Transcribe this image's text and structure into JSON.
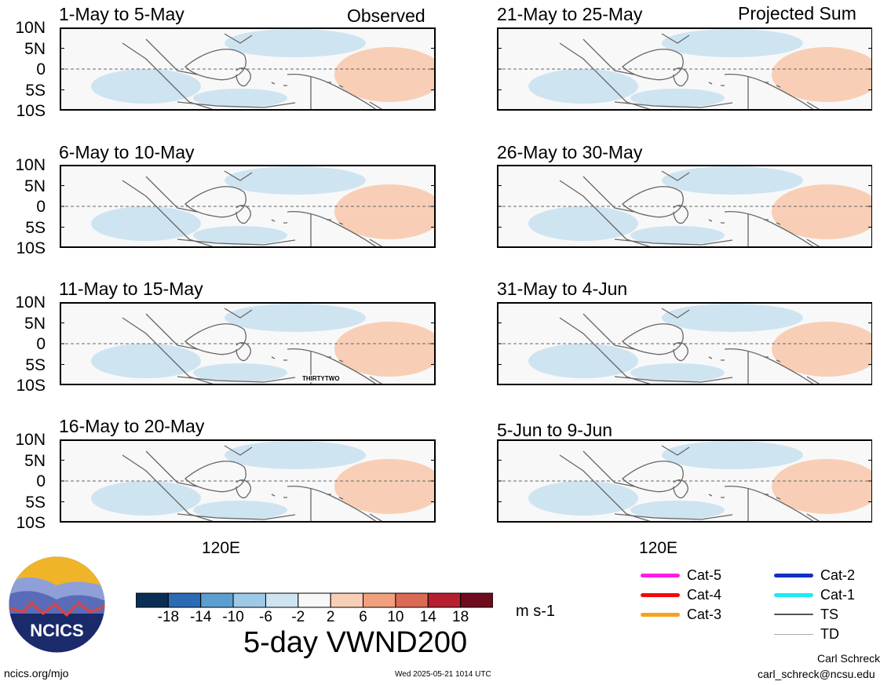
{
  "header": {
    "observed_label": "Observed",
    "projected_label": "Projected Sum"
  },
  "y_ticks": [
    "10N",
    "5N",
    "0",
    "5S",
    "10S"
  ],
  "x_tick": "120E",
  "panels_left": [
    {
      "title": "1-May to 5-May"
    },
    {
      "title": "6-May to 10-May"
    },
    {
      "title": "11-May to 15-May",
      "storm_label": "THIRTYTWO"
    },
    {
      "title": "16-May to 20-May"
    }
  ],
  "panels_right": [
    {
      "title": "21-May to 25-May"
    },
    {
      "title": "26-May to 30-May"
    },
    {
      "title": "31-May to 4-Jun"
    },
    {
      "title": "5-Jun to 9-Jun"
    }
  ],
  "colorbar": {
    "labels": [
      "-18",
      "-14",
      "-10",
      "-6",
      "-2",
      "2",
      "6",
      "10",
      "14",
      "18"
    ],
    "colors": [
      "#0b2e57",
      "#2a6bb4",
      "#5d9ed0",
      "#9ec9e6",
      "#cfe4f1",
      "#f8f8f8",
      "#f8cfb6",
      "#f0a07d",
      "#db6a55",
      "#b51f30",
      "#6e0b1f"
    ],
    "units": "m s-1",
    "title": "5-day VWND200"
  },
  "legend": [
    {
      "label": "Cat-5",
      "color": "#ff1ce6"
    },
    {
      "label": "Cat-4",
      "color": "#f20a0a"
    },
    {
      "label": "Cat-3",
      "color": "#f7a11d"
    },
    {
      "label": "Cat-2",
      "color": "#1030c8"
    },
    {
      "label": "Cat-1",
      "color": "#1fe9f7"
    },
    {
      "label": "TS",
      "color": "#555555"
    },
    {
      "label": "TD",
      "color": "#aaaaaa"
    }
  ],
  "logo": {
    "text": "NCICS"
  },
  "footer": {
    "url": "ncics.org/mjo",
    "timestamp": "Wed 2025-05-21 1014 UTC",
    "author": "Carl Schreck",
    "email": "carl_schreck@ncsu.edu"
  }
}
